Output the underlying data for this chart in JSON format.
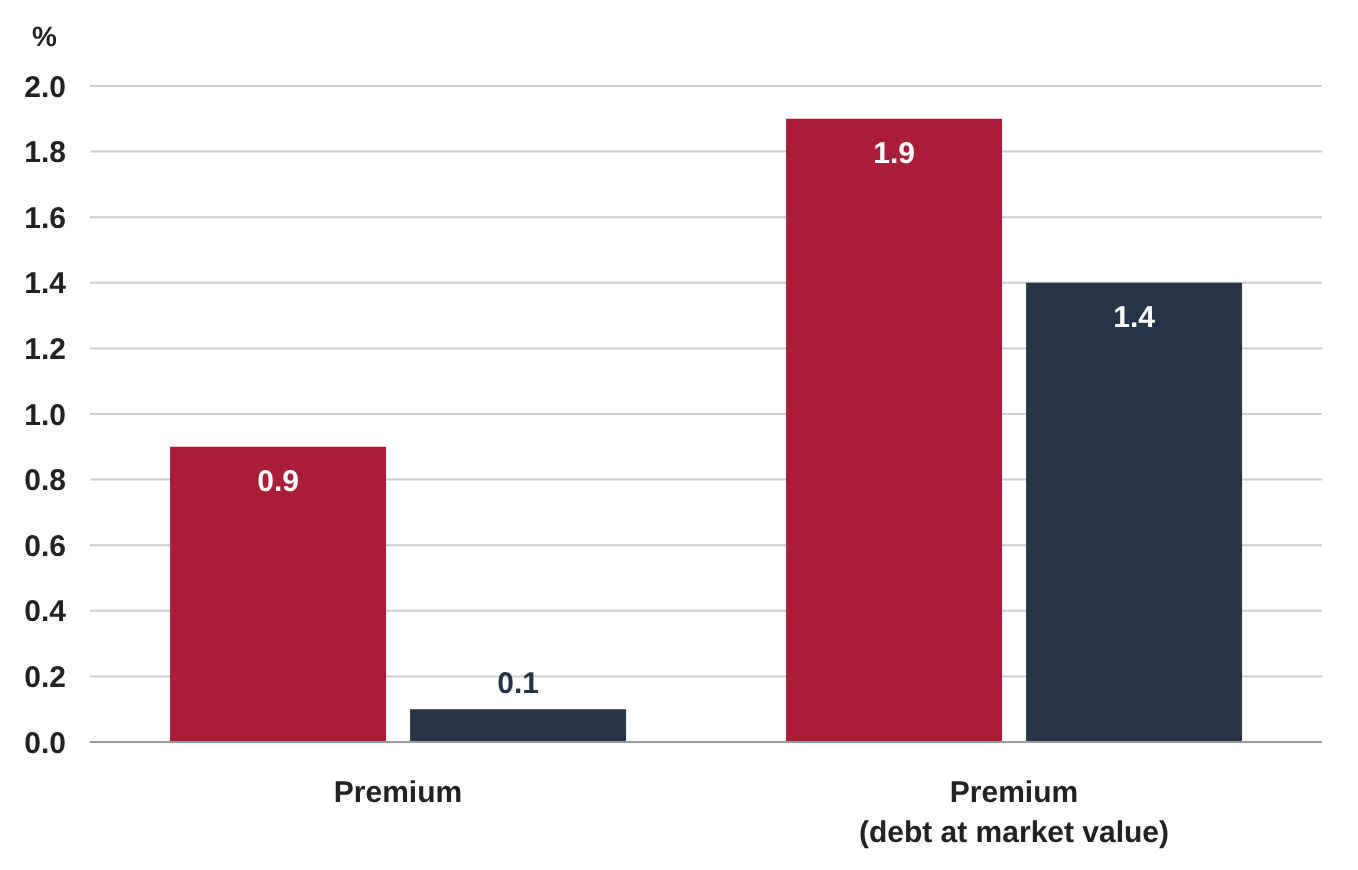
{
  "chart_data": {
    "type": "bar",
    "ylabel": "%",
    "categories": [
      "Premium",
      "Premium\n(debt at market value)"
    ],
    "series": [
      {
        "color": "#a91d36",
        "values": [
          0.9,
          1.9
        ]
      },
      {
        "color": "#253547",
        "values": [
          0.1,
          1.4
        ]
      }
    ],
    "ylim": [
      0,
      2.0
    ],
    "yticks": [
      {
        "value": 0,
        "label": "0.0"
      },
      {
        "value": 0.2,
        "label": "0.2"
      },
      {
        "value": 0.4,
        "label": "0.4"
      },
      {
        "value": 0.6,
        "label": "0.6"
      },
      {
        "value": 0.8,
        "label": "0.8"
      },
      {
        "value": 1.0,
        "label": "1.0"
      },
      {
        "value": 1.2,
        "label": "1.2"
      },
      {
        "value": 1.4,
        "label": "1.4"
      },
      {
        "value": 1.6,
        "label": "1.6"
      },
      {
        "value": 1.8,
        "label": "1.8"
      },
      {
        "value": 2.0,
        "label": "2.0"
      }
    ],
    "grid": "y",
    "data_labels": true,
    "legend": false
  }
}
